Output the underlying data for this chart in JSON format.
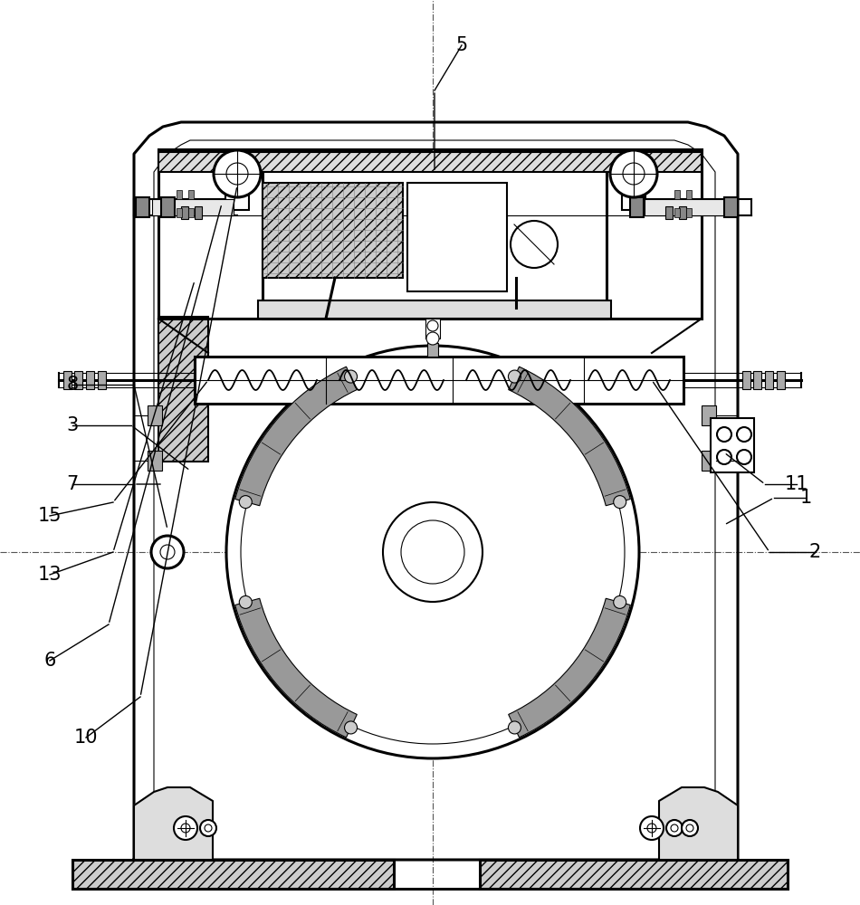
{
  "bg_color": "#ffffff",
  "line_color": "#000000",
  "figsize": [
    9.5,
    10.0
  ],
  "dpi": 100,
  "labels_info": [
    [
      "1",
      890,
      450,
      855,
      450,
      800,
      420
    ],
    [
      "2",
      900,
      390,
      850,
      390,
      720,
      580
    ],
    [
      "3",
      80,
      530,
      145,
      530,
      210,
      480
    ],
    [
      "5",
      510,
      950,
      480,
      900,
      480,
      810
    ],
    [
      "6",
      55,
      270,
      120,
      310,
      245,
      775
    ],
    [
      "7",
      80,
      465,
      148,
      465,
      180,
      465
    ],
    [
      "8",
      80,
      575,
      148,
      575,
      185,
      415
    ],
    [
      "10",
      95,
      185,
      155,
      230,
      262,
      795
    ],
    [
      "11",
      880,
      465,
      845,
      465,
      800,
      500
    ],
    [
      "13",
      55,
      365,
      125,
      390,
      215,
      690
    ],
    [
      "15",
      55,
      430,
      125,
      445,
      230,
      580
    ]
  ]
}
